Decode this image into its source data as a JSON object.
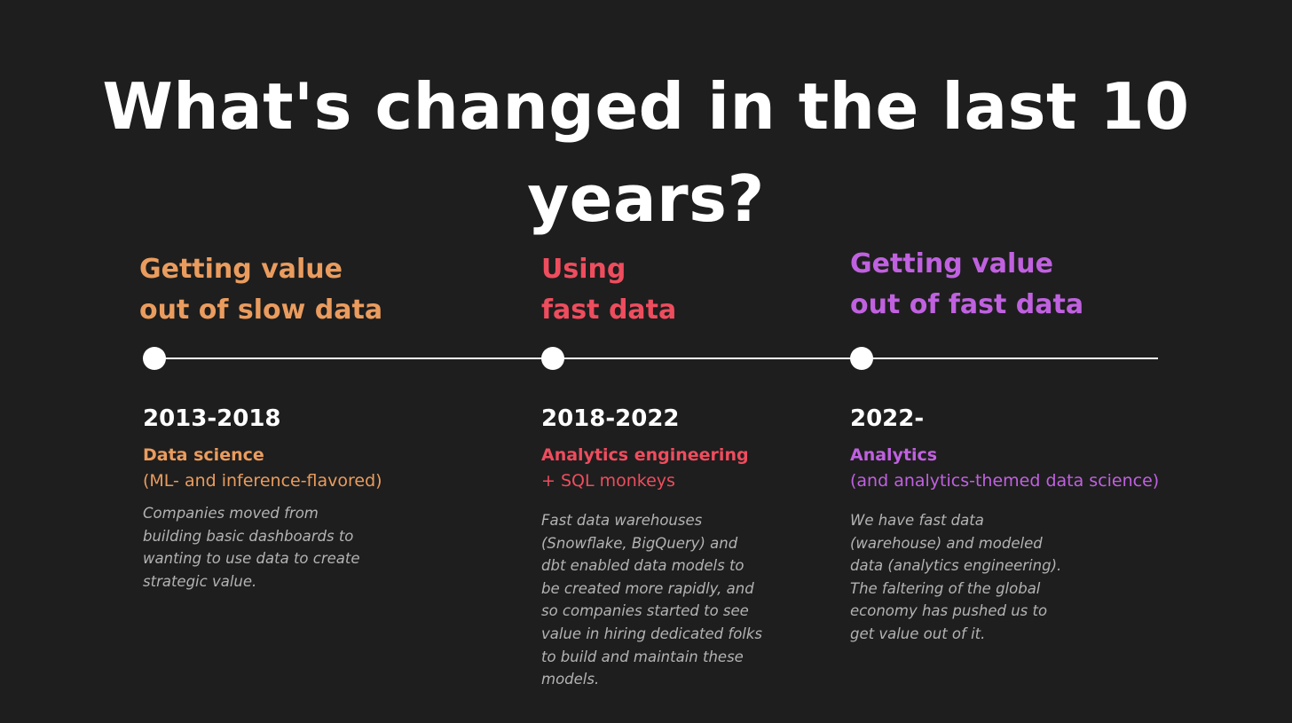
{
  "title": "What's changed in the last 10 years?",
  "colors": {
    "background": "#1e1e1e",
    "era1": "#ea9c5e",
    "era2": "#ee4d5e",
    "era3": "#c061e0",
    "timeline": "#ffffff"
  },
  "eras": [
    {
      "heading": [
        "Getting value",
        "out of slow data"
      ],
      "years": "2013-2018",
      "role": "Data science",
      "subtitle": "(ML- and inference-flavored)",
      "description": "Companies moved from\nbuilding basic dashboards to\nwanting to use data to create\nstrategic value."
    },
    {
      "heading": [
        "Using",
        "fast data"
      ],
      "years": "2018-2022",
      "role": "Analytics engineering",
      "subtitle": "+ SQL monkeys",
      "description": "Fast data warehouses\n(Snowflake, BigQuery) and\ndbt enabled data models to\nbe created more rapidly, and\nso companies started to see\nvalue in hiring dedicated folks\nto build and maintain these\nmodels."
    },
    {
      "heading": [
        "Getting value",
        "out of fast data"
      ],
      "years": "2022-",
      "role": "Analytics",
      "subtitle": "(and analytics-themed data science)",
      "description": "We have fast data\n(warehouse) and modeled\ndata (analytics engineering).\nThe faltering of the global\neconomy has pushed us to\nget value out of it."
    }
  ]
}
